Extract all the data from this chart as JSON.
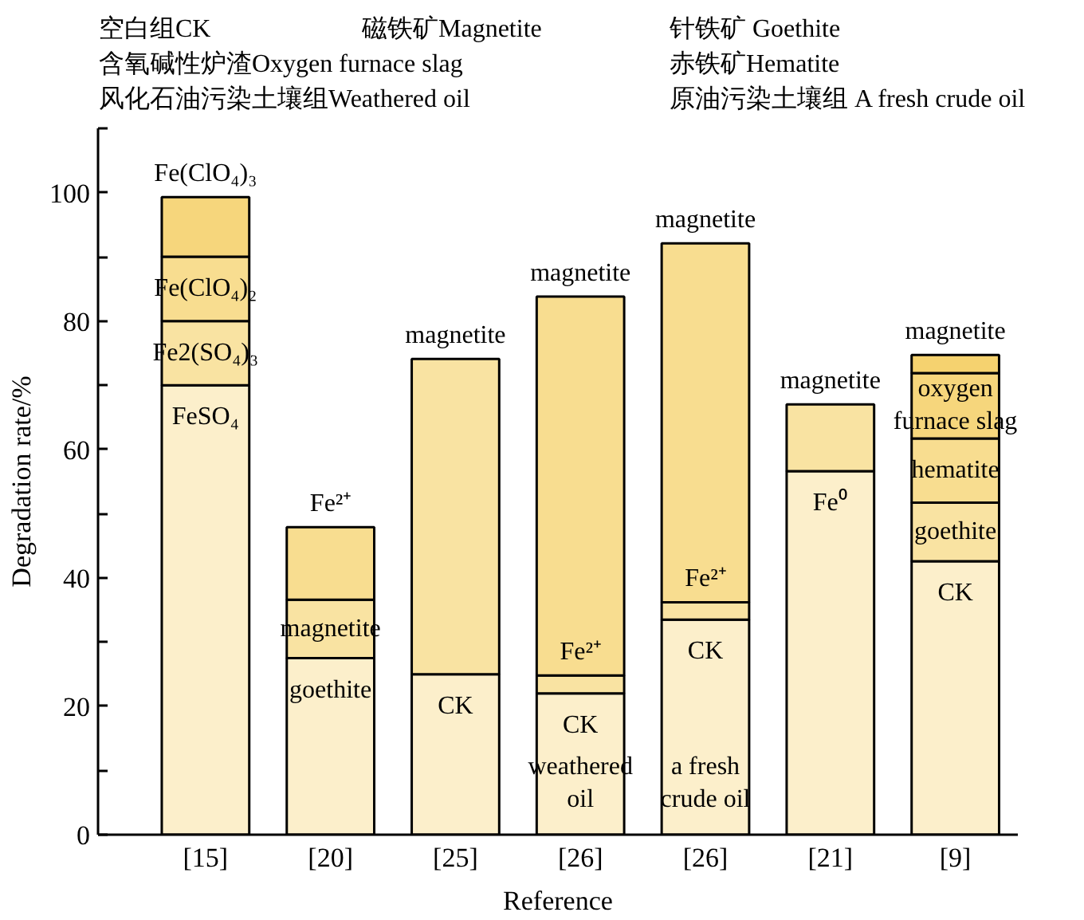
{
  "chart_data": {
    "type": "bar",
    "stacked": true,
    "categories": [
      "[15]",
      "[20]",
      "[25]",
      "[26]",
      "[26]",
      "[21]",
      "[9]"
    ],
    "xlabel": "Reference",
    "ylabel": "Degradation rate/%",
    "ylim": [
      0,
      110
    ],
    "yticks": [
      0,
      {
        "value": 10,
        "label": null
      },
      20,
      {
        "value": 30,
        "label": null
      },
      40,
      {
        "value": 50,
        "label": null
      },
      60,
      {
        "value": 70,
        "label": null
      },
      80,
      {
        "value": 90,
        "label": null
      },
      100,
      {
        "value": 110,
        "label": null
      }
    ],
    "grid": false,
    "series": [
      {
        "color": "#fcefcb",
        "values": [
          70,
          27.5,
          25,
          22,
          33.5,
          56.6,
          42.6
        ],
        "value_labels": [
          "FeSO₄",
          "goethite",
          "CK",
          "CK",
          "CK",
          "Fe⁰",
          "CK"
        ]
      },
      {
        "color": "#f9e3a2",
        "values": [
          10,
          9.1,
          49.1,
          2.8,
          2.7,
          10.4,
          9.1
        ],
        "value_labels": [
          "Fe2(SO₄)₃",
          "magnetite",
          "magnetite",
          "Fe²⁺",
          "Fe²⁺",
          "magnetite",
          "goethite"
        ]
      },
      {
        "color": "#f8dd90",
        "values": [
          10,
          11.3,
          null,
          59,
          55.9,
          null,
          10
        ],
        "value_labels": [
          "Fe(ClO₄)₂",
          "Fe²⁺",
          null,
          "magnetite",
          "magnetite",
          null,
          "hematite"
        ]
      },
      {
        "color": "#f6d67c",
        "values": [
          9.3,
          null,
          null,
          null,
          null,
          null,
          10.2
        ],
        "value_labels": [
          "Fe(ClO₄)₃",
          null,
          null,
          null,
          null,
          null,
          "oxygen furnace slag"
        ]
      },
      {
        "color": "#f5d26f",
        "values": [
          null,
          null,
          null,
          null,
          null,
          null,
          2.8
        ],
        "value_labels": [
          null,
          null,
          null,
          null,
          null,
          null,
          "magnetite"
        ]
      }
    ],
    "annotations": [
      "空白组CK",
      "磁铁矿Magnetite",
      "针铁矿 Goethite",
      "含氧碱性炉渣Oxygen furnace slag",
      "赤铁矿Hematite",
      "风化石油污染土壤组Weathered oil",
      "原油污染土壤组 A fresh crude oil",
      "weathered oil",
      "a fresh crude oil"
    ]
  }
}
